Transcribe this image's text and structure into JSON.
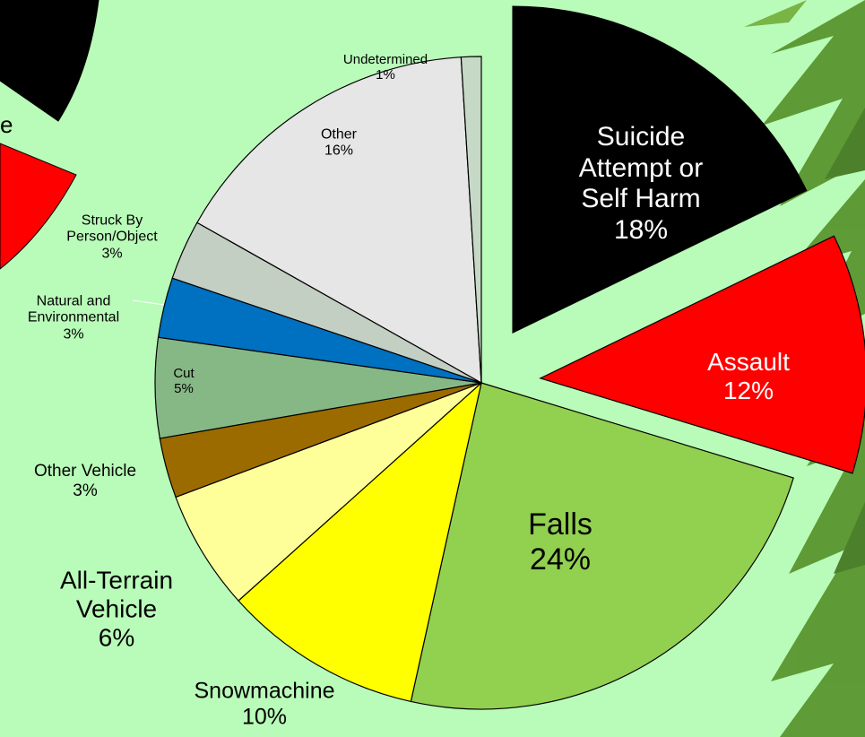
{
  "chart_data": {
    "type": "pie",
    "categories": [
      "Suicide Attempt or Self Harm",
      "Assault",
      "Falls",
      "Snowmachine",
      "All-Terrain Vehicle",
      "Other Vehicle",
      "Cut",
      "Natural and Environmental",
      "Struck By Person/Object",
      "Other",
      "Undetermined"
    ],
    "values": [
      18,
      12,
      24,
      10,
      6,
      3,
      5,
      3,
      3,
      16,
      1
    ],
    "value_labels": [
      "18%",
      "12%",
      "24%",
      "10%",
      "6%",
      "3%",
      "5%",
      "3%",
      "3%",
      "16%",
      "1%"
    ],
    "colors": [
      "#000000",
      "#ff0000",
      "#92d050",
      "#ffff00",
      "#ffff99",
      "#9c6b00",
      "#86b886",
      "#0070c0",
      "#c4cfc4",
      "#e6e6e6",
      "#c6d9c6"
    ],
    "exploded": [
      true,
      true,
      false,
      false,
      false,
      false,
      false,
      false,
      false,
      false,
      false
    ]
  },
  "partial_chart_label": "de"
}
